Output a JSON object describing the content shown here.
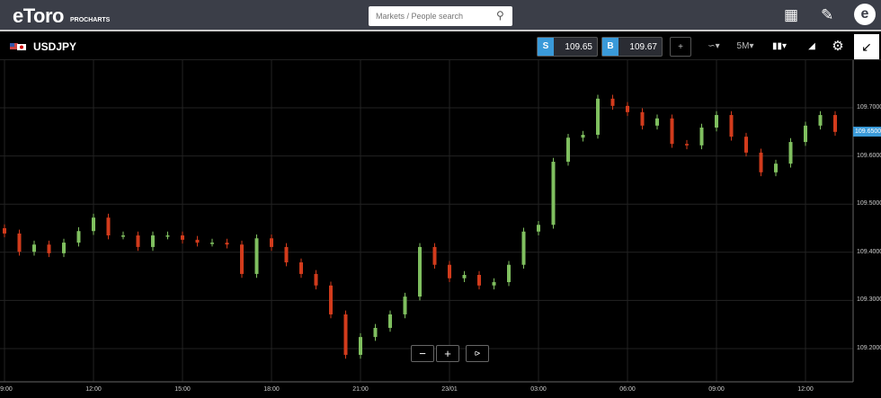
{
  "header": {
    "logo": "eToro",
    "logo_sub": "PROCHARTS",
    "search_placeholder": "Markets / People search"
  },
  "toolbar": {
    "symbol": "USDJPY",
    "sell_tag": "S",
    "sell_price": "109.65",
    "buy_tag": "B",
    "buy_price": "109.67",
    "interval": "5M"
  },
  "icons": [
    "search-icon",
    "layout-icon",
    "pen-icon",
    "etoro-user-icon",
    "crosshair-icon",
    "chart-type-icon",
    "candles-icon",
    "draw-tool-icon",
    "gear-icon",
    "collapse-icon",
    "share-icon"
  ],
  "colors": {
    "up": "#7fbf5f",
    "down": "#d23b1c",
    "accent": "#3a9ad9"
  },
  "zoom": {
    "minus": "−",
    "plus": "+"
  },
  "chart_data": {
    "type": "candlestick",
    "y_ticks": [
      "109.7000",
      "109.6000",
      "109.5000",
      "109.4000",
      "109.3000",
      "109.2000"
    ],
    "x_ticks": [
      "09:00",
      "12:00",
      "15:00",
      "18:00",
      "21:00",
      "23/01",
      "03:00",
      "06:00",
      "09:00",
      "12:00"
    ],
    "current_price": "109.6500",
    "ylim": [
      109.15,
      109.8
    ],
    "grid": true,
    "first_open": 109.45,
    "close": [
      109.439,
      109.401,
      109.416,
      109.398,
      109.42,
      109.444,
      109.472,
      109.435,
      109.435,
      109.411,
      109.435,
      109.435,
      109.426,
      109.42,
      109.42,
      109.416,
      109.355,
      109.429,
      109.411,
      109.379,
      109.355,
      109.331,
      109.271,
      109.187,
      109.224,
      109.243,
      109.271,
      109.308,
      109.411,
      109.374,
      109.346,
      109.353,
      109.331,
      109.338,
      109.374,
      109.443,
      109.457,
      109.588,
      109.638,
      109.644,
      109.719,
      109.704,
      109.691,
      109.663,
      109.678,
      109.625,
      109.622,
      109.659,
      109.685,
      109.64,
      109.607,
      109.566,
      109.584,
      109.629,
      109.663,
      109.685,
      109.65
    ]
  }
}
